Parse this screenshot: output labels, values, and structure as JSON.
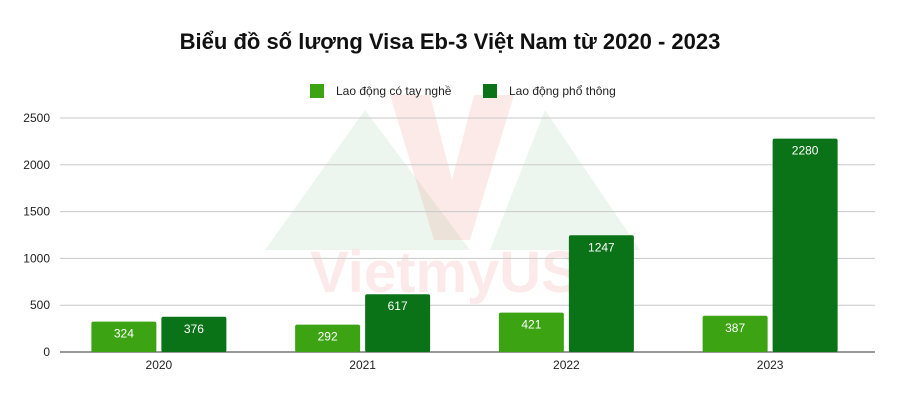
{
  "chart_data": {
    "type": "bar",
    "title": "Biểu đồ số lượng Visa Eb-3 Việt Nam từ 2020 - 2023",
    "categories": [
      "2020",
      "2021",
      "2022",
      "2023"
    ],
    "series": [
      {
        "name": "Lao động có tay nghề",
        "color": "#3ca413",
        "values": [
          324,
          292,
          421,
          387
        ]
      },
      {
        "name": "Lao động phổ thông",
        "color": "#0a7318",
        "values": [
          376,
          617,
          1247,
          2280
        ]
      }
    ],
    "y_ticks": [
      "0",
      "500",
      "1000",
      "1500",
      "2000",
      "2500"
    ],
    "ylim": [
      0,
      2500
    ],
    "grid": true,
    "legend_position": "top-center",
    "watermark": "VietmyUS"
  }
}
